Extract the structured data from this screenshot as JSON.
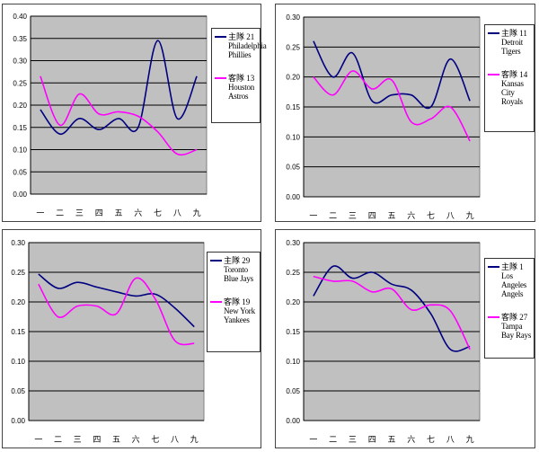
{
  "colors": {
    "home": "#000080",
    "away": "#ff00ff",
    "plot_bg": "#c0c0c0",
    "grid": "#000000"
  },
  "chart_data": [
    {
      "type": "line",
      "categories": [
        "一",
        "二",
        "三",
        "四",
        "五",
        "六",
        "七",
        "八",
        "九"
      ],
      "ylim": [
        0,
        0.4
      ],
      "yticks": [
        "0.00",
        "0.05",
        "0.10",
        "0.15",
        "0.20",
        "0.25",
        "0.30",
        "0.35",
        "0.40"
      ],
      "series": [
        {
          "name": "主隊 21 Philadelphia Phillies",
          "label": "主隊",
          "number": "21",
          "team": "Philadelphia Phillies",
          "role": "home",
          "values": [
            0.19,
            0.135,
            0.17,
            0.145,
            0.17,
            0.15,
            0.345,
            0.17,
            0.265
          ]
        },
        {
          "name": "客隊 13 Houston Astros",
          "label": "客隊",
          "number": "13",
          "team": "Houston Astros",
          "role": "away",
          "values": [
            0.265,
            0.155,
            0.225,
            0.18,
            0.185,
            0.175,
            0.14,
            0.09,
            0.1
          ]
        }
      ]
    },
    {
      "type": "line",
      "categories": [
        "一",
        "二",
        "三",
        "四",
        "五",
        "六",
        "七",
        "八",
        "九"
      ],
      "ylim": [
        0,
        0.3
      ],
      "yticks": [
        "0.00",
        "0.05",
        "0.10",
        "0.15",
        "0.20",
        "0.25",
        "0.30"
      ],
      "series": [
        {
          "name": "主隊 11 Detroit Tigers",
          "label": "主隊",
          "number": "11",
          "team": "Detroit Tigers",
          "role": "home",
          "values": [
            0.26,
            0.2,
            0.24,
            0.16,
            0.17,
            0.17,
            0.15,
            0.23,
            0.16
          ]
        },
        {
          "name": "客隊 14 Kansas City Royals",
          "label": "客隊",
          "number": "14",
          "team": "Kansas City Royals",
          "role": "away",
          "values": [
            0.2,
            0.17,
            0.21,
            0.18,
            0.195,
            0.125,
            0.13,
            0.15,
            0.093
          ]
        }
      ]
    },
    {
      "type": "line",
      "categories": [
        "一",
        "二",
        "三",
        "四",
        "五",
        "六",
        "七",
        "八",
        "九"
      ],
      "ylim": [
        0,
        0.3
      ],
      "yticks": [
        "0.00",
        "0.05",
        "0.10",
        "0.15",
        "0.20",
        "0.25",
        "0.30"
      ],
      "series": [
        {
          "name": "主隊 29 Toronto Blue Jays",
          "label": "主隊",
          "number": "29",
          "team": "Toronto Blue Jays",
          "role": "home",
          "values": [
            0.247,
            0.223,
            0.233,
            0.225,
            0.217,
            0.21,
            0.213,
            0.19,
            0.158
          ]
        },
        {
          "name": "客隊 19 New York Yankees",
          "label": "客隊",
          "number": "19",
          "team": "New York Yankees",
          "role": "away",
          "values": [
            0.23,
            0.175,
            0.193,
            0.193,
            0.18,
            0.24,
            0.205,
            0.135,
            0.13
          ]
        }
      ]
    },
    {
      "type": "line",
      "categories": [
        "一",
        "二",
        "三",
        "四",
        "五",
        "六",
        "七",
        "八",
        "九"
      ],
      "ylim": [
        0,
        0.3
      ],
      "yticks": [
        "0.00",
        "0.05",
        "0.10",
        "0.15",
        "0.20",
        "0.25",
        "0.30"
      ],
      "series": [
        {
          "name": "主隊 1 Los Angeles Angels",
          "label": "主隊",
          "number": "1",
          "team": "Los Angeles Angels",
          "role": "home",
          "values": [
            0.21,
            0.26,
            0.24,
            0.25,
            0.23,
            0.22,
            0.18,
            0.12,
            0.125
          ]
        },
        {
          "name": "客隊 27 Tampa Bay Rays",
          "label": "客隊",
          "number": "27",
          "team": "Tampa Bay Rays",
          "role": "away",
          "values": [
            0.243,
            0.235,
            0.235,
            0.217,
            0.222,
            0.187,
            0.195,
            0.185,
            0.12
          ]
        }
      ]
    }
  ]
}
